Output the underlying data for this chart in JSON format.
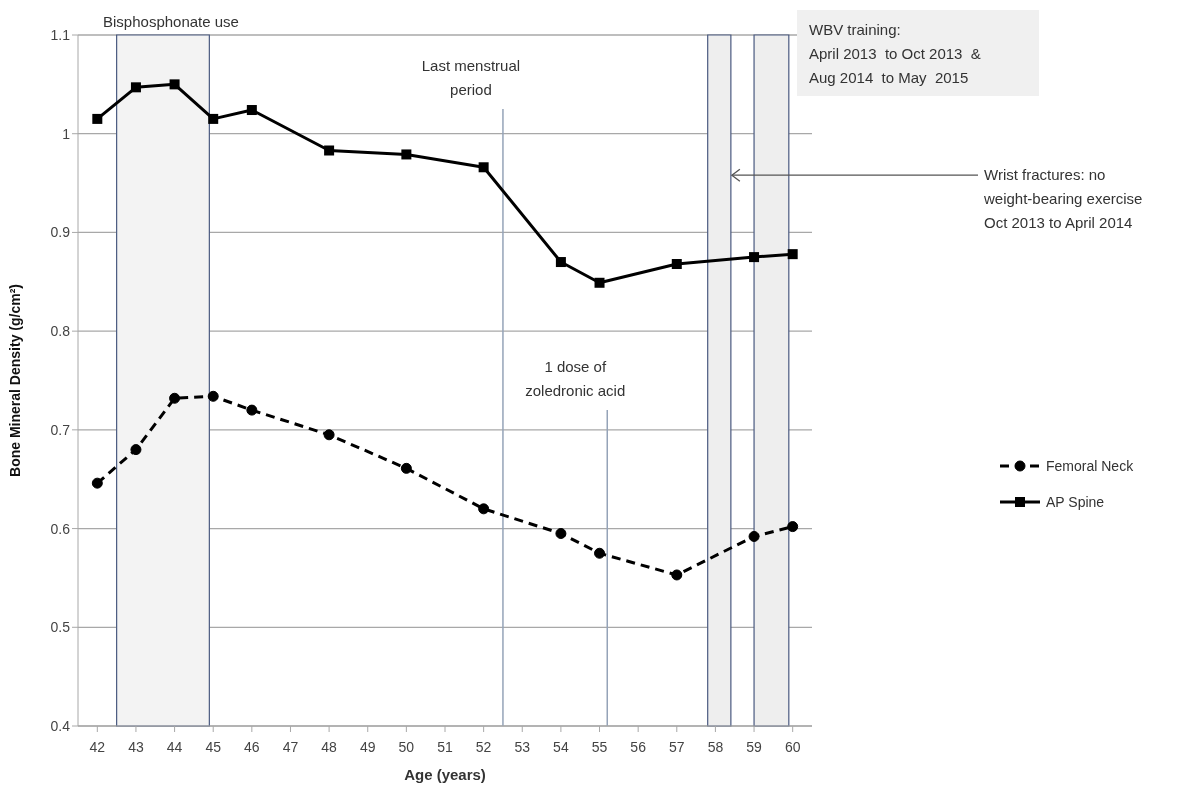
{
  "chart_data": {
    "type": "line",
    "xlabel": "Age (years)",
    "ylabel": "Bone Mineral Density (g/cm²)",
    "x": [
      42,
      43,
      44,
      45,
      46,
      48,
      50,
      52,
      54,
      55,
      57,
      59,
      60
    ],
    "series": [
      {
        "name": "Femoral Neck",
        "color": "#000000",
        "marker": "circle",
        "line_style": "dashed",
        "values": [
          0.646,
          0.68,
          0.732,
          0.734,
          0.72,
          0.695,
          0.661,
          0.62,
          0.595,
          0.575,
          0.553,
          0.592,
          0.602
        ]
      },
      {
        "name": "AP Spine",
        "color": "#000000",
        "marker": "square",
        "line_style": "solid",
        "values": [
          1.015,
          1.047,
          1.05,
          1.015,
          1.024,
          0.983,
          0.979,
          0.966,
          0.87,
          0.849,
          0.868,
          0.875,
          0.878
        ]
      }
    ],
    "xlim": [
      41.5,
      60.5
    ],
    "xticks": [
      42,
      43,
      44,
      45,
      46,
      47,
      48,
      49,
      50,
      51,
      52,
      53,
      54,
      55,
      56,
      57,
      58,
      59,
      60
    ],
    "ylim": [
      0.4,
      1.1
    ],
    "yticks": [
      0.4,
      0.5,
      0.6,
      0.7,
      0.8,
      0.9,
      1,
      1.1
    ],
    "grid": "y",
    "legend": "right",
    "bands": [
      {
        "axis": "x",
        "from": 42.5,
        "to": 44.9,
        "label": "Bisphosphonate use",
        "color": "#f3f3f3"
      },
      {
        "axis": "x",
        "from": 57.8,
        "to": 58.4,
        "color": "#eeeeee"
      },
      {
        "axis": "x",
        "from": 59.0,
        "to": 59.9,
        "color": "#eeeeee"
      }
    ],
    "ref_lines": [
      {
        "axis": "x",
        "value": 52.5,
        "color": "#95a3b8"
      },
      {
        "axis": "x",
        "value": 55.2,
        "color": "#95a3b8"
      }
    ],
    "annotations": [
      {
        "text": "Last menstrual\nperiod",
        "x": 52.5,
        "y": 1.025
      },
      {
        "text": "1 dose of\nzoledronic acid",
        "x": 55.2,
        "y": 0.72
      },
      "WBV training:\nApril 2013  to Oct 2013  &\nAug 2014  to May  2015",
      {
        "text": "Wrist fractures: no\nweight-bearing exercise\nOct 2013  to April 2014",
        "x": 58.4,
        "y": 0.958
      }
    ]
  }
}
